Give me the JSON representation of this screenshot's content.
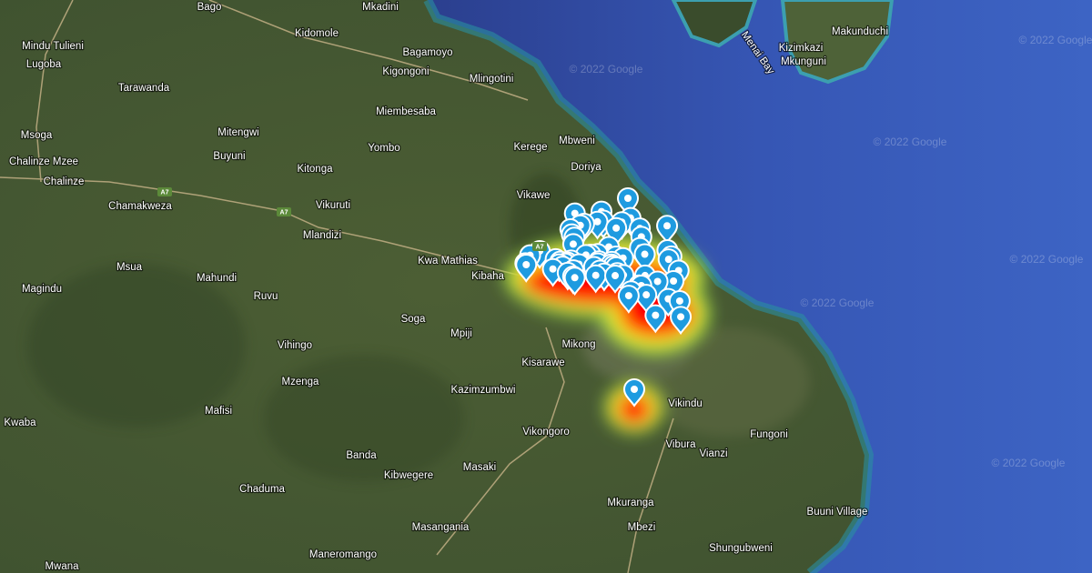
{
  "place_labels": [
    "Bago",
    "Mkadini",
    "Kidomole",
    "Mindu Tulieni",
    "Bagamoyo",
    "Lugoba",
    "Kigongoni",
    "Mlingotini",
    "Tarawanda",
    "Miembesaba",
    "Mitengwi",
    "Msoga",
    "Kerege",
    "Mbweni",
    "Yombo",
    "Buyuni",
    "Chalinze Mzee",
    "Doriya",
    "Kitonga",
    "Chalinze",
    "Chamakweza",
    "Vikawe",
    "Vikuruti",
    "Mlandizi",
    "Kwa Mathias",
    "Kibaha",
    "Msua",
    "Mahundi",
    "Magindu",
    "Ruvu",
    "Soga",
    "Mpiji",
    "Mikong",
    "Vihingo",
    "Kisarawe",
    "Mzenga",
    "Kazimzumbwi",
    "Vikindu",
    "Kwaba",
    "Mafisi",
    "Fungoni",
    "Vikongoro",
    "Vibura",
    "Vianzi",
    "Banda",
    "Kibwegere",
    "Masaki",
    "Chaduma",
    "Buuni Village",
    "Mkuranga",
    "Mbezi",
    "Masangania",
    "Shungubweni",
    "Maneromango",
    "Mwana",
    "Makunduchi",
    "Kizimkazi",
    "Mkunguni"
  ],
  "road_labels": [
    "A7",
    "A7",
    "A7"
  ],
  "water_labels": [
    "Menai Bay"
  ],
  "watermarks": [
    "© 2022 Google",
    "© 2022 Google",
    "© 2022 Google",
    "© 2022 Google",
    "© 2022 Google",
    "© 2022 Google"
  ]
}
